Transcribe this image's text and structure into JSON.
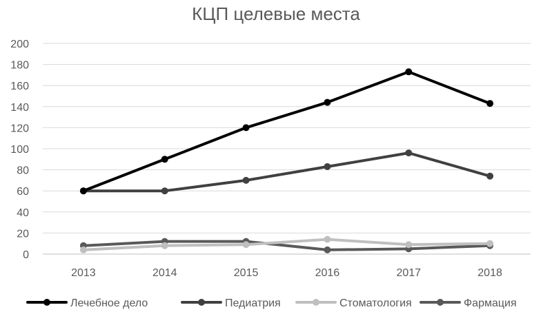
{
  "chart_data": {
    "type": "line",
    "title": "КЦП целевые места",
    "xlabel": "",
    "ylabel": "",
    "categories": [
      "2013",
      "2014",
      "2015",
      "2016",
      "2017",
      "2018"
    ],
    "ylim": [
      0,
      200
    ],
    "yticks": [
      0,
      20,
      40,
      60,
      80,
      100,
      120,
      140,
      160,
      180,
      200
    ],
    "grid": true,
    "legend_position": "bottom",
    "series": [
      {
        "name": "Лечебное дело",
        "values": [
          60,
          90,
          120,
          144,
          173,
          143
        ],
        "color": "#000000",
        "line_width": 4
      },
      {
        "name": "Педиатрия",
        "values": [
          60,
          60,
          70,
          83,
          96,
          74
        ],
        "color": "#404040",
        "line_width": 4
      },
      {
        "name": "Стоматология",
        "values": [
          4,
          8,
          9,
          14,
          9,
          10
        ],
        "color": "#bfbfbf",
        "line_width": 4
      },
      {
        "name": "Фармация",
        "values": [
          8,
          12,
          12,
          4,
          5,
          8
        ],
        "color": "#595959",
        "line_width": 4
      }
    ]
  }
}
